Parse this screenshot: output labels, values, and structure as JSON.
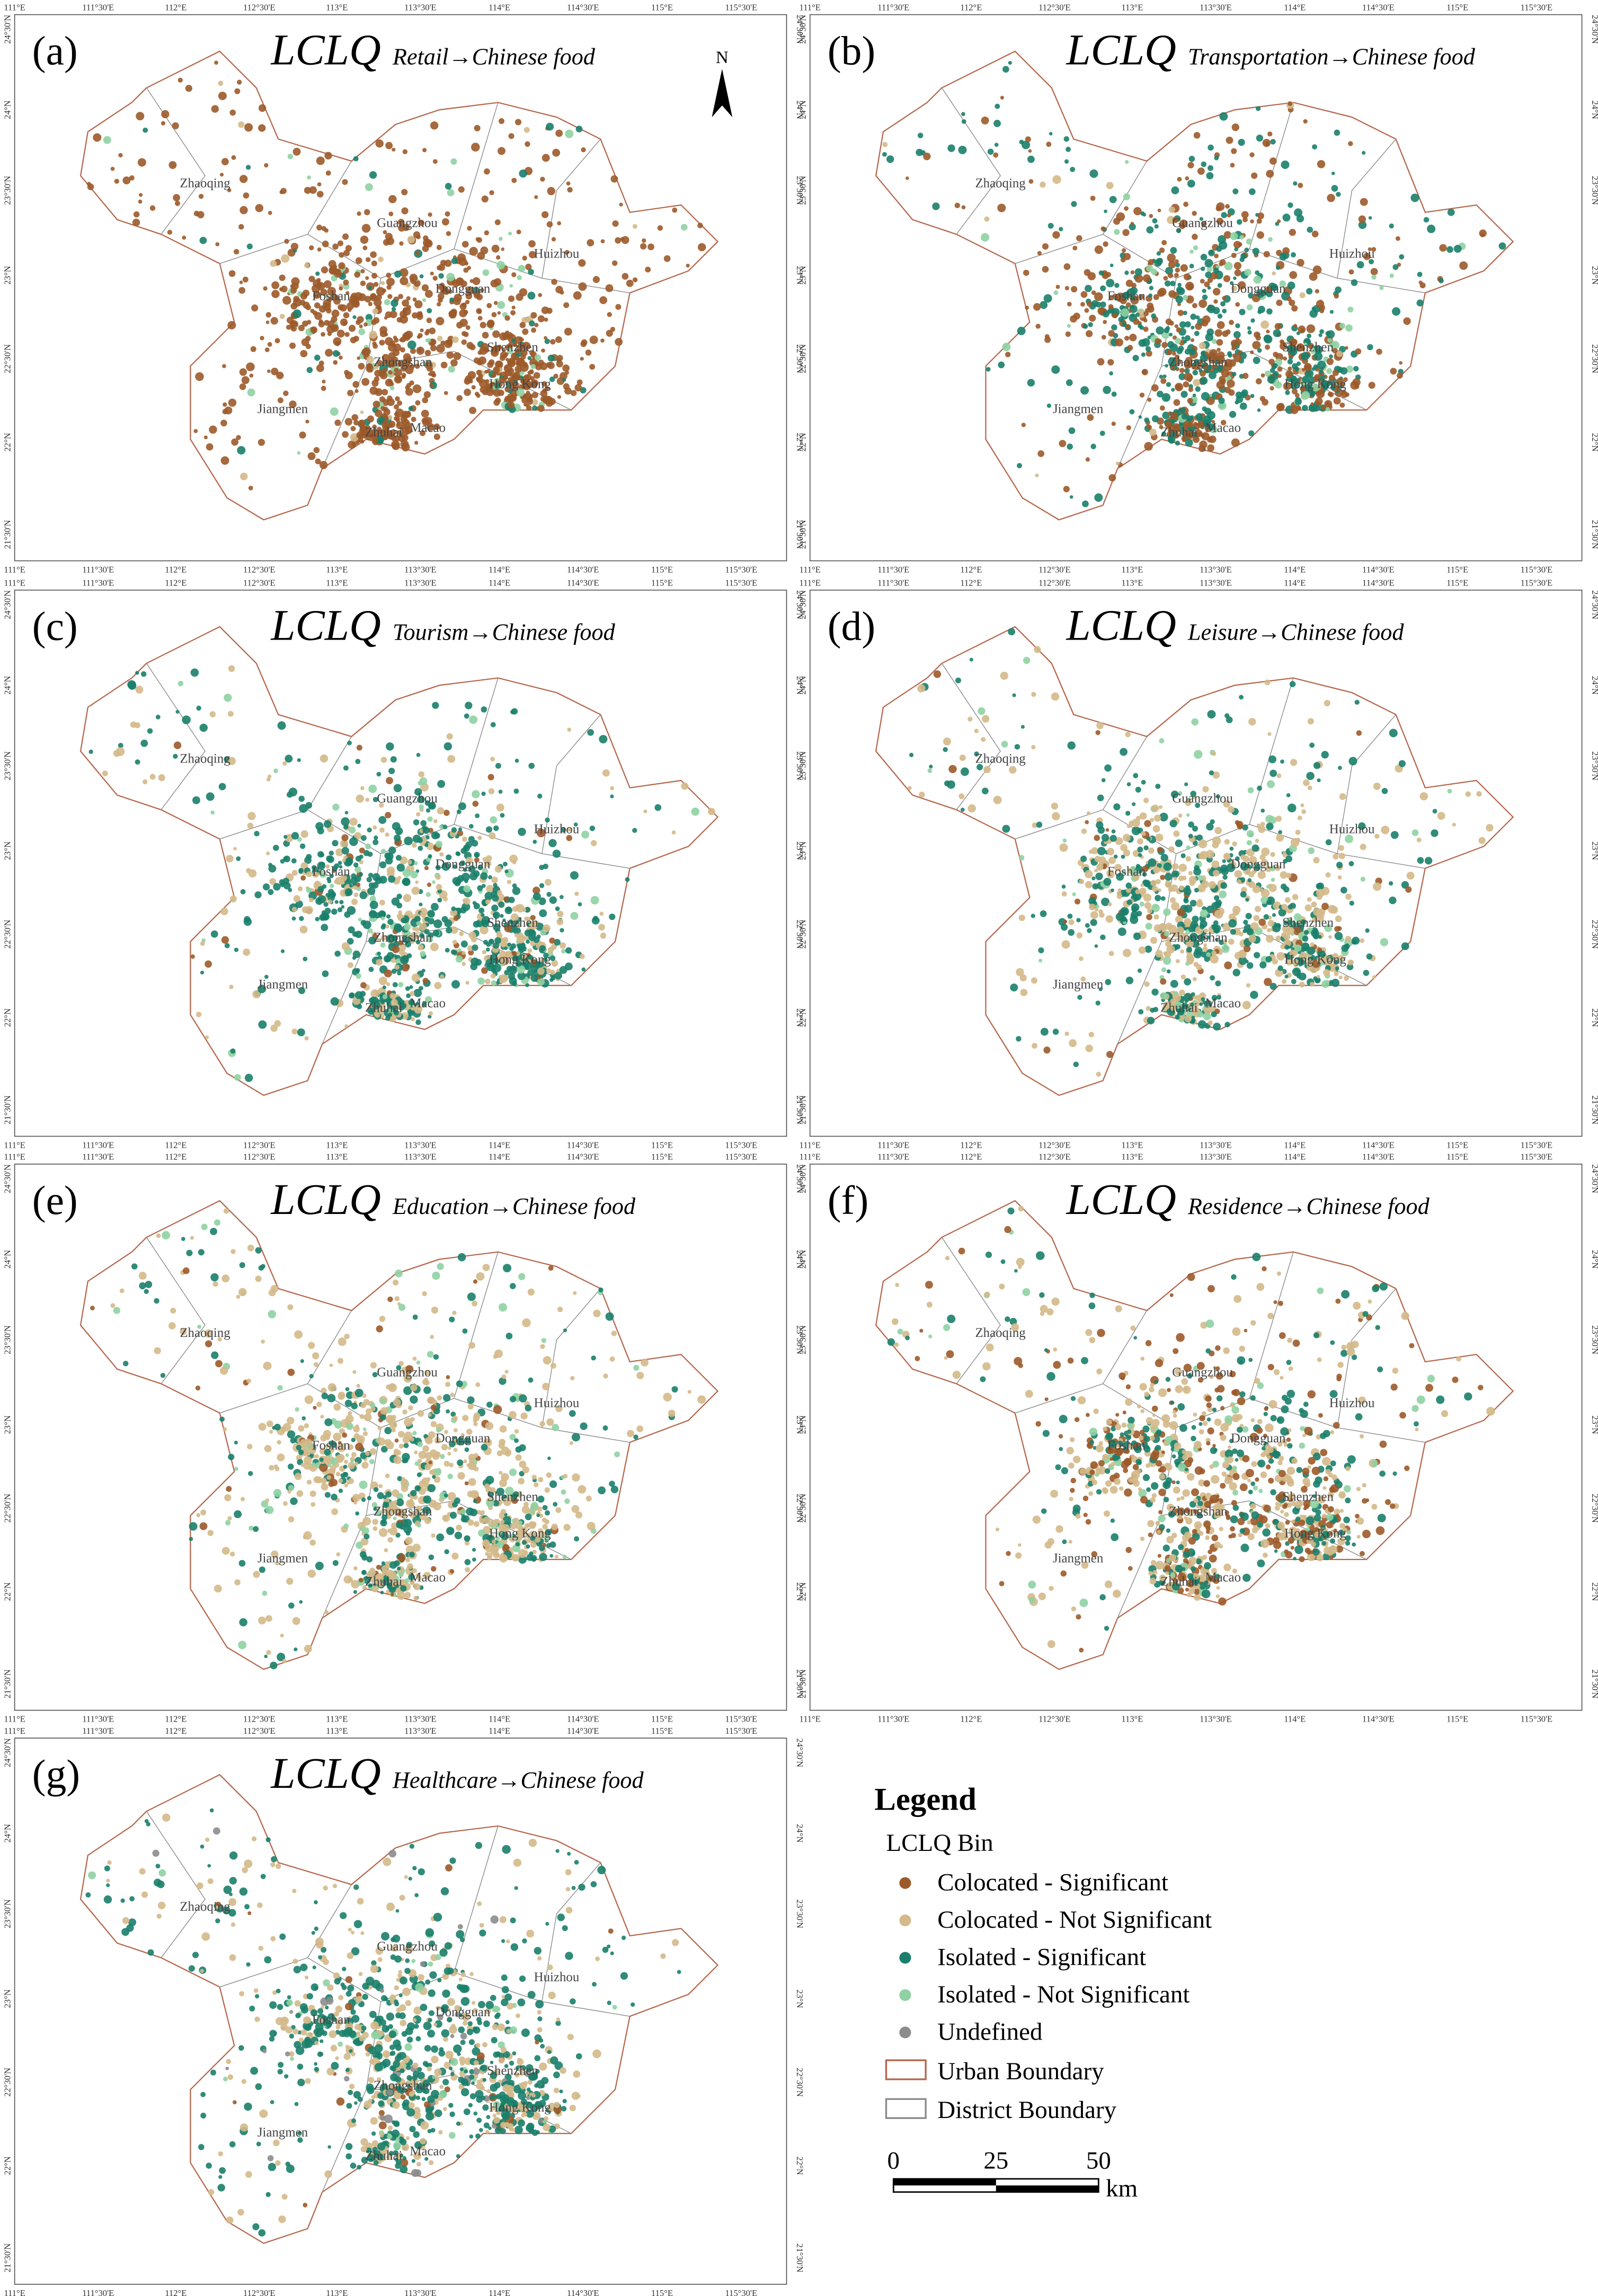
{
  "panels": [
    {
      "label": "(a)",
      "title": "LCLQ",
      "subtitle": "Retail→Chinese food"
    },
    {
      "label": "(b)",
      "title": "LCLQ",
      "subtitle": "Transportation→Chinese food"
    },
    {
      "label": "(c)",
      "title": "LCLQ",
      "subtitle": "Tourism→Chinese food"
    },
    {
      "label": "(d)",
      "title": "LCLQ",
      "subtitle": "Leisure→Chinese food"
    },
    {
      "label": "(e)",
      "title": "LCLQ",
      "subtitle": "Education→Chinese food"
    },
    {
      "label": "(f)",
      "title": "LCLQ",
      "subtitle": "Residence→Chinese food"
    },
    {
      "label": "(g)",
      "title": "LCLQ",
      "subtitle": "Healthcare→Chinese food"
    }
  ],
  "cities": [
    "Zhaoqing",
    "Guangzhou",
    "Huizhou",
    "Foshan",
    "Dongguan",
    "Shenzhen",
    "Zhongshan",
    "Hong Kong",
    "Jiangmen",
    "Zhuhai",
    "Macao"
  ],
  "lon_ticks": [
    "111°E",
    "111°30'E",
    "112°E",
    "112°30'E",
    "113°E",
    "113°30'E",
    "114°E",
    "114°30'E",
    "115°E",
    "115°30'E"
  ],
  "lat_ticks": [
    "24°30'N",
    "24°N",
    "23°30'N",
    "23°N",
    "22°30'N",
    "22°N",
    "21°30'N"
  ],
  "north": "N",
  "legend": {
    "title": "Legend",
    "subtitle": "LCLQ Bin",
    "items": [
      {
        "label": "Colocated - Significant",
        "color": "#9c5a2a"
      },
      {
        "label": "Colocated - Not Significant",
        "color": "#d4b98a"
      },
      {
        "label": "Isolated - Significant",
        "color": "#1a7f6a"
      },
      {
        "label": "Isolated - Not Significant",
        "color": "#8fd1a3"
      },
      {
        "label": "Undefined",
        "color": "#8c8c8c"
      }
    ],
    "boundaries": [
      {
        "label": "Urban Boundary",
        "color": "#b5654a"
      },
      {
        "label": "District Boundary",
        "color": "#8a8a8a"
      }
    ]
  },
  "scale": {
    "ticks": [
      0,
      25,
      50
    ],
    "unit": "km"
  }
}
